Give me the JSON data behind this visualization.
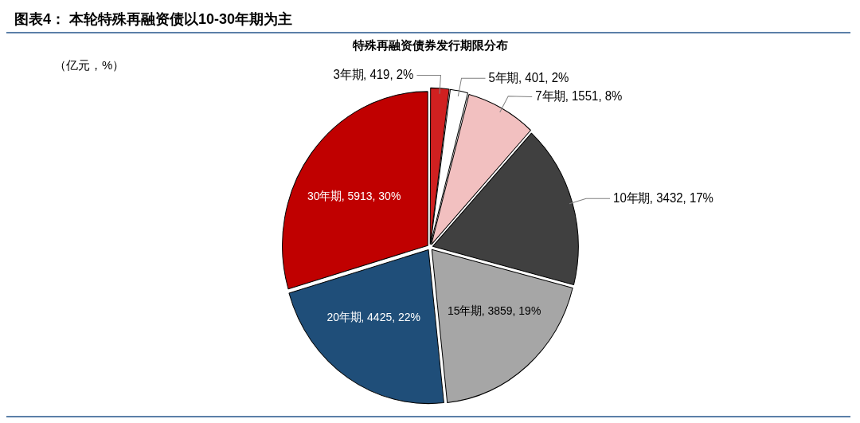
{
  "chart_data": {
    "type": "pie",
    "title": "图表4： 本轮特殊再融资债以10-30年期为主",
    "subtitle": "特殊再融资债券发行期限分布",
    "annotations": [
      "（亿元，%）"
    ],
    "categories": [
      "3年期",
      "5年期",
      "7年期",
      "10年期",
      "15年期",
      "20年期",
      "30年期"
    ],
    "values": [
      419,
      401,
      1551,
      3432,
      3859,
      4425,
      5913
    ],
    "value_labels": [
      "419, 2%",
      "401, 2%",
      "1551, 8%",
      "3432, 17%",
      "3859, 19%",
      "4425, 22%",
      "5913, 30%"
    ],
    "colors": [
      "#d02020",
      "#ffffff",
      "#f2c0c0",
      "#404040",
      "#a6a6a6",
      "#1f4e79",
      "#c00000"
    ],
    "legend": false
  }
}
